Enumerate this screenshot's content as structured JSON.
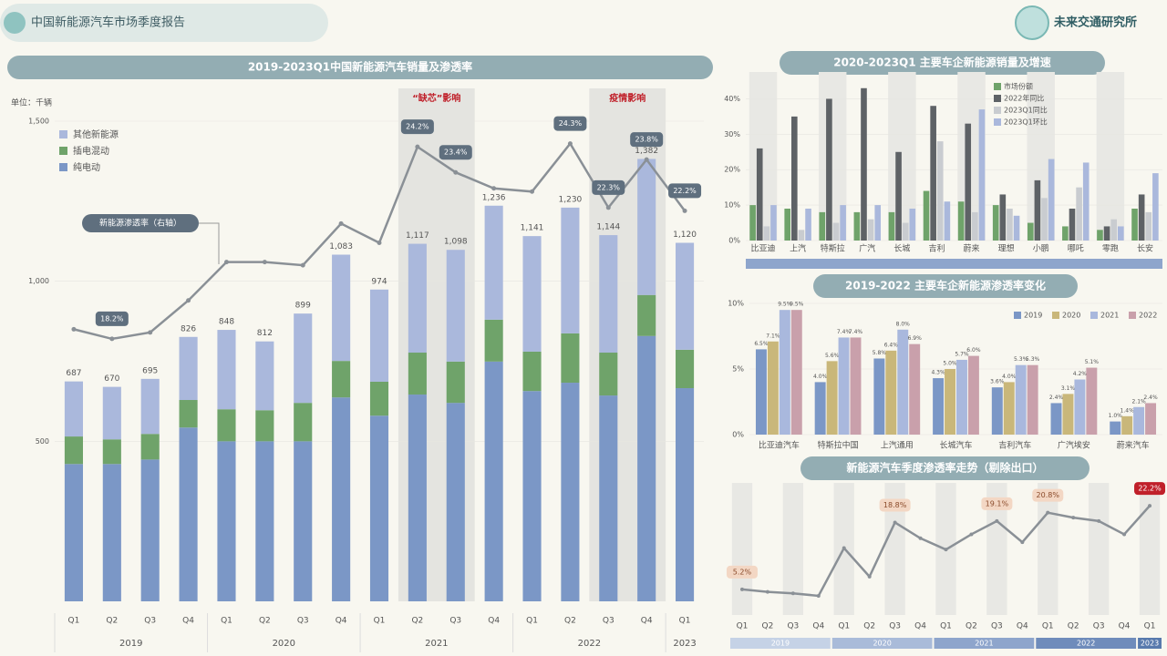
{
  "header": {
    "title": "中国新能源汽车市场季度报告",
    "brand": "未来交通研究所"
  },
  "chart_data": [
    {
      "type": "bar",
      "stacked": true,
      "title": "2019-2023Q1中国新能源汽车销量及渗透率",
      "y_label": "单位：千辆",
      "category_groups": [
        {
          "label": "2019",
          "categories": [
            "Q1",
            "Q2",
            "Q3",
            "Q4"
          ]
        },
        {
          "label": "2020",
          "categories": [
            "Q1",
            "Q2",
            "Q3",
            "Q4"
          ]
        },
        {
          "label": "2021",
          "categories": [
            "Q1",
            "Q2",
            "Q3",
            "Q4"
          ]
        },
        {
          "label": "2022",
          "categories": [
            "Q1",
            "Q2",
            "Q3",
            "Q4"
          ]
        },
        {
          "label": "2023",
          "categories": [
            "Q1"
          ]
        }
      ],
      "ylim": [
        0,
        1500
      ],
      "yticks": [
        500,
        {
          "value": 1000,
          "label": "1,000"
        },
        {
          "value": 1500,
          "label": "1,500"
        }
      ],
      "y2lim": [
        10,
        25
      ],
      "series": [
        {
          "name": "纯电动",
          "color": "#7b97c6",
          "values": [
            429,
            429,
            443,
            543,
            500,
            500,
            500,
            637,
            580,
            646,
            620,
            749,
            657,
            683,
            643,
            829,
            666
          ]
        },
        {
          "name": "插电混动",
          "color": "#6fa36a",
          "values": [
            86,
            77,
            80,
            86,
            100,
            97,
            120,
            114,
            106,
            131,
            129,
            131,
            123,
            154,
            134,
            128,
            120
          ]
        },
        {
          "name": "其他新能源",
          "color": "#aab8dc",
          "values": [
            172,
            164,
            172,
            197,
            248,
            215,
            279,
            332,
            288,
            340,
            349,
            356,
            361,
            393,
            367,
            425,
            334
          ]
        },
        {
          "name": "新能源渗透率（右轴）",
          "type": "line",
          "axis": "y2",
          "color": "#8a9096",
          "values": [
            18.5,
            18.2,
            18.4,
            19.4,
            20.6,
            20.6,
            20.5,
            21.8,
            21.2,
            24.2,
            23.4,
            22.9,
            22.8,
            24.3,
            22.3,
            23.8,
            22.2
          ],
          "value_labels": [
            null,
            "18.2%",
            null,
            null,
            null,
            null,
            null,
            null,
            null,
            "24.2%",
            "23.4%",
            null,
            null,
            "24.3%",
            "22.3%",
            "23.8%",
            "22.2%"
          ]
        }
      ],
      "total_labels": [
        "687",
        "670",
        "695",
        "826",
        "848",
        "812",
        "899",
        "1,083",
        "974",
        "1,117",
        "1,098",
        "1,236",
        "1,141",
        "1,230",
        "1,144",
        "1,382",
        "1,120"
      ],
      "annotations": [
        "“缺芯”影响",
        "疫情影响"
      ]
    },
    {
      "type": "bar",
      "title": "2020-2023Q1 主要车企新能源销量及增速",
      "categories": [
        "比亚迪",
        "上汽",
        "特斯拉",
        "广汽",
        "长城",
        "吉利",
        "蔚来",
        "理想",
        "小鹏",
        "哪吒",
        "零跑",
        "长安"
      ],
      "ylim": [
        0,
        45
      ],
      "yticks": [
        {
          "value": 0,
          "label": "0%"
        },
        {
          "value": 10,
          "label": "10%"
        },
        {
          "value": 20,
          "label": "20%"
        },
        {
          "value": 30,
          "label": "30%"
        },
        {
          "value": 40,
          "label": "40%"
        }
      ],
      "series": [
        {
          "name": "市场份额",
          "color": "#6fa36a",
          "values": [
            10,
            9,
            8,
            8,
            8,
            14,
            11,
            10,
            5,
            4,
            3,
            9
          ]
        },
        {
          "name": "2022年同比",
          "color": "#5e6266",
          "values": [
            26,
            35,
            40,
            43,
            25,
            38,
            33,
            13,
            17,
            9,
            4,
            13
          ]
        },
        {
          "name": "2023Q1同比",
          "color": "#c9ccd0",
          "values": [
            4,
            3,
            5,
            6,
            5,
            28,
            8,
            9,
            12,
            15,
            6,
            8
          ]
        },
        {
          "name": "2023Q1环比",
          "color": "#aab8dc",
          "values": [
            10,
            9,
            10,
            10,
            9,
            11,
            37,
            7,
            23,
            22,
            4,
            19
          ]
        }
      ]
    },
    {
      "type": "bar",
      "title": "2019-2022 主要车企新能源渗透率变化",
      "categories": [
        "比亚迪汽车",
        "特斯拉中国",
        "上汽通用",
        "长城汽车",
        "吉利汽车",
        "广汽埃安",
        "蔚来汽车"
      ],
      "ylim": [
        0,
        10
      ],
      "yticks": [
        {
          "value": 0,
          "label": "0%"
        },
        {
          "value": 5,
          "label": "5%"
        },
        {
          "value": 10,
          "label": "10%"
        }
      ],
      "series": [
        {
          "name": "2019",
          "color": "#7b97c6",
          "values": [
            6.5,
            4.0,
            5.8,
            4.3,
            3.6,
            2.4,
            1.0
          ],
          "value_labels": [
            "6.5%",
            "4.0%",
            "5.8%",
            "4.3%",
            "3.6%",
            "2.4%",
            "1.0%"
          ]
        },
        {
          "name": "2020",
          "color": "#c9b77a",
          "values": [
            7.1,
            5.6,
            6.4,
            5.0,
            4.0,
            3.1,
            1.4
          ],
          "value_labels": [
            "7.1%",
            "5.6%",
            "6.4%",
            "5.0%",
            "4.0%",
            "3.1%",
            "1.4%"
          ]
        },
        {
          "name": "2021",
          "color": "#a9b8dd",
          "values": [
            9.5,
            7.4,
            8.0,
            5.7,
            5.3,
            4.2,
            2.1
          ],
          "value_labels": [
            "9.5%",
            "7.4%",
            "8.0%",
            "5.7%",
            "5.3%",
            "4.2%",
            "2.1%"
          ]
        },
        {
          "name": "2022",
          "color": "#c9a0ab",
          "values": [
            9.5,
            7.4,
            6.9,
            6.0,
            5.3,
            5.1,
            2.4
          ],
          "value_labels": [
            "9.5%",
            "7.4%",
            "6.9%",
            "6.0%",
            "5.3%",
            "5.1%",
            "2.4%"
          ]
        }
      ]
    },
    {
      "type": "line",
      "title": "新能源汽车季度渗透率走势（剔除出口）",
      "category_groups": [
        {
          "label": "2019",
          "categories": [
            "Q1",
            "Q2",
            "Q3",
            "Q4"
          ]
        },
        {
          "label": "2020",
          "categories": [
            "Q1",
            "Q2",
            "Q3",
            "Q4"
          ]
        },
        {
          "label": "2021",
          "categories": [
            "Q1",
            "Q2",
            "Q3",
            "Q4"
          ]
        },
        {
          "label": "2022",
          "categories": [
            "Q1",
            "Q2",
            "Q3",
            "Q4"
          ]
        },
        {
          "label": "2023",
          "categories": [
            "Q1"
          ]
        }
      ],
      "ylim": [
        0,
        25
      ],
      "color": "#8a9096",
      "values": [
        5.2,
        4.7,
        4.4,
        3.9,
        13.6,
        7.8,
        18.8,
        15.6,
        13.3,
        16.4,
        19.1,
        14.8,
        20.8,
        19.8,
        19.1,
        16.4,
        22.2
      ],
      "value_labels": [
        "5.2%",
        null,
        null,
        null,
        null,
        null,
        "18.8%",
        null,
        null,
        null,
        "19.1%",
        null,
        "20.8%",
        null,
        null,
        null,
        "22.2%"
      ]
    }
  ]
}
